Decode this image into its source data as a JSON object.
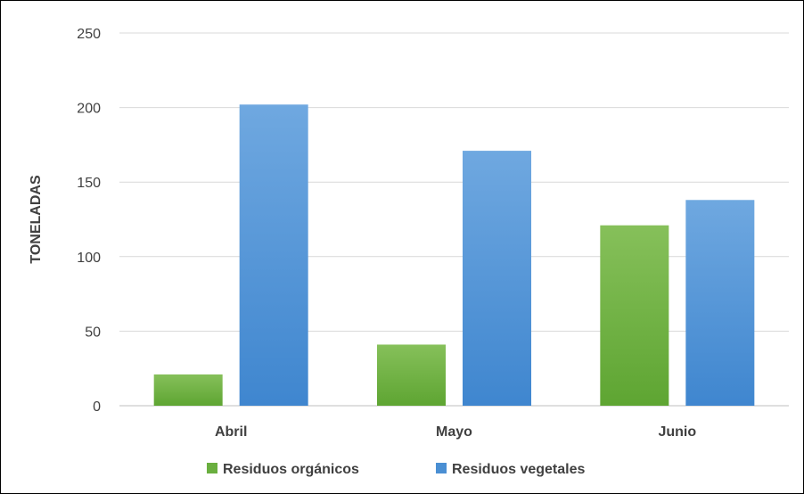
{
  "chart_data": {
    "type": "bar",
    "categories": [
      "Abril",
      "Mayo",
      "Junio"
    ],
    "series": [
      {
        "name": "Residuos orgánicos",
        "values": [
          21,
          41,
          121
        ],
        "color": "#6aaf3f",
        "color_light": "#86c05a"
      },
      {
        "name": "Residuos vegetales",
        "values": [
          202,
          171,
          138
        ],
        "color": "#4a8fd3",
        "color_light": "#6fa8e0"
      }
    ],
    "title": "",
    "xlabel": "",
    "ylabel": "TONELADAS",
    "ylim": [
      0,
      250
    ],
    "yticks": [
      0,
      50,
      100,
      150,
      200,
      250
    ],
    "grid": true,
    "legend": "bottom"
  }
}
